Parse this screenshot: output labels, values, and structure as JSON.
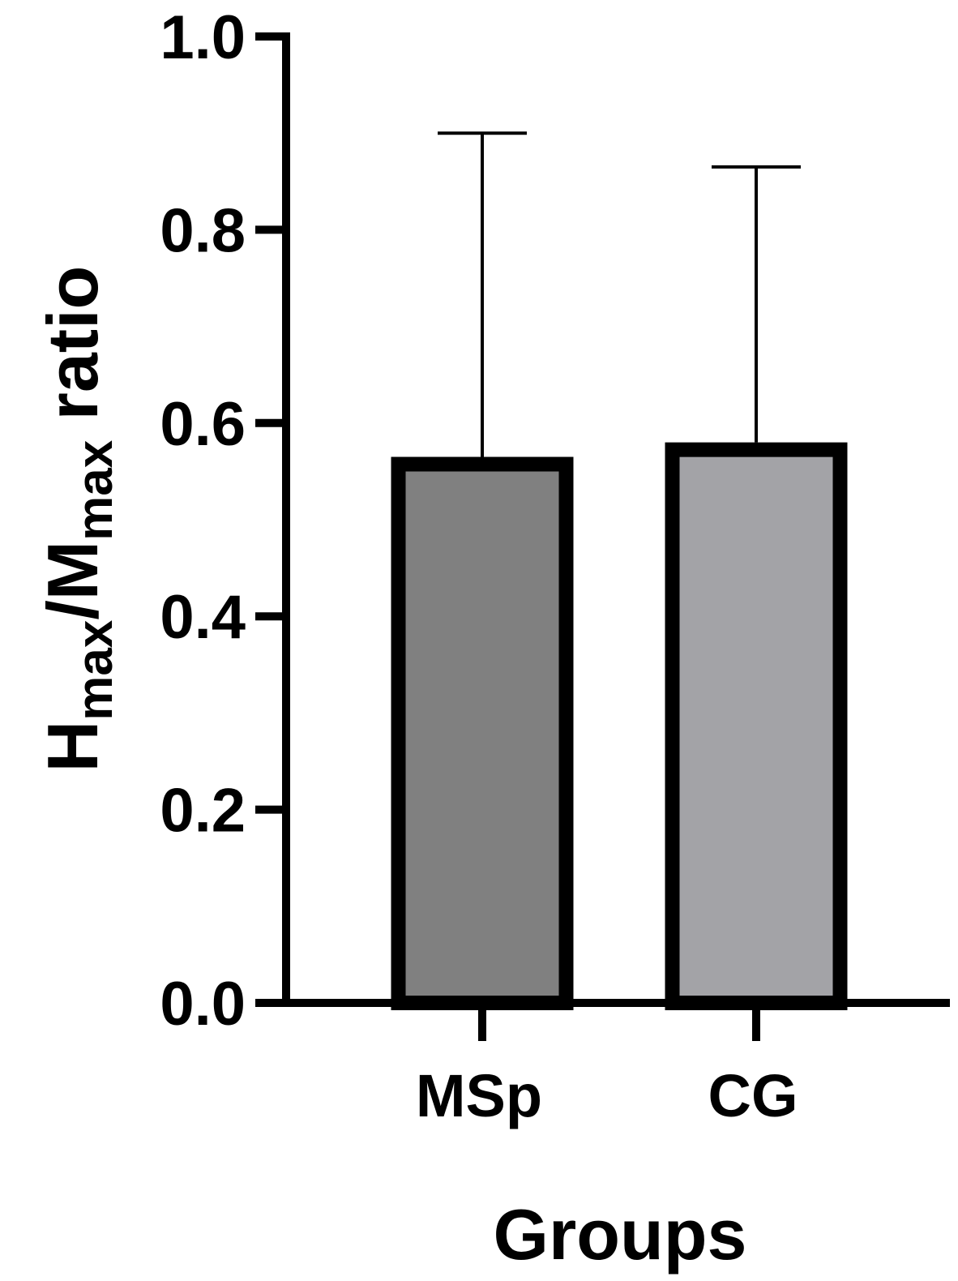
{
  "chart_data": {
    "type": "bar",
    "categories": [
      "MSp",
      "CG"
    ],
    "values": [
      0.565,
      0.58
    ],
    "error_upper": [
      0.9,
      0.865
    ],
    "bar_colors": [
      "#808080",
      "#a3a3a7"
    ],
    "edge_color": "#000000",
    "xlabel": "Groups",
    "ylabel": {
      "parts": [
        {
          "text": "H",
          "sub": false
        },
        {
          "text": "max",
          "sub": true
        },
        {
          "text": "/M",
          "sub": false
        },
        {
          "text": "max",
          "sub": true
        },
        {
          "text": " ratio",
          "sub": false
        }
      ]
    },
    "ylim": [
      0,
      1.0
    ],
    "yticks": [
      0.0,
      0.2,
      0.4,
      0.6,
      0.8,
      1.0
    ],
    "ytick_labels": [
      "0.0",
      "0.2",
      "0.4",
      "0.6",
      "0.8",
      "1.0"
    ],
    "grid": false,
    "legend": "none"
  }
}
